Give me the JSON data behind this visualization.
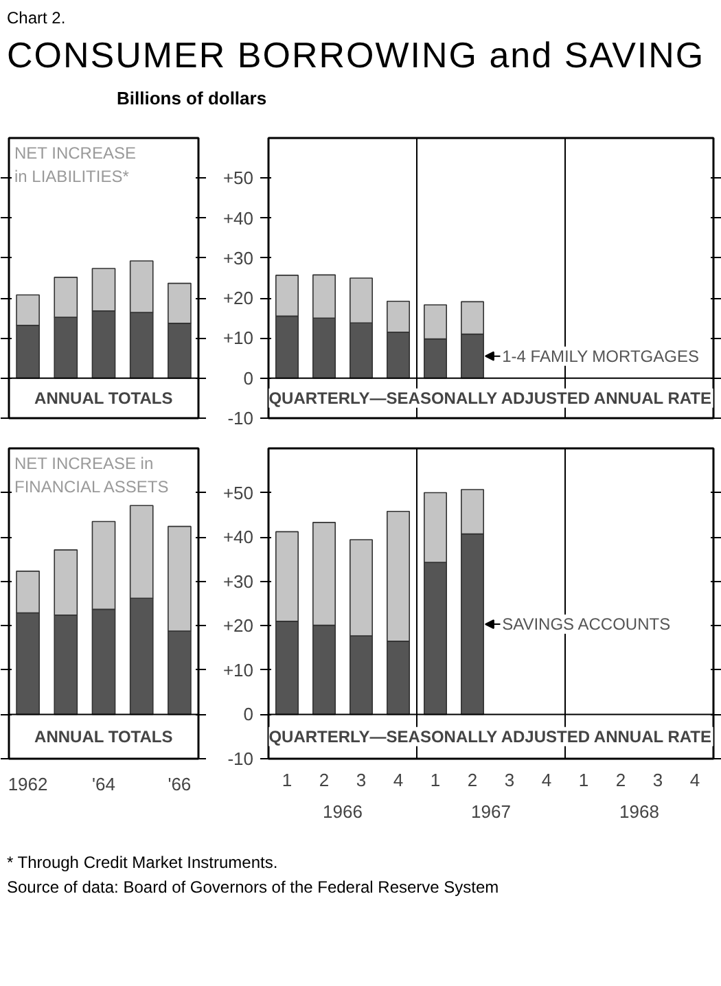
{
  "chart_data": [
    {
      "type": "bar",
      "title": "CONSUMER BORROWING and SAVING",
      "subtitle": "Chart 2.",
      "stacked": true,
      "categories": [
        null,
        null,
        null,
        null,
        null
      ],
      "xlabel": "ANNUAL TOTALS",
      "annotations": [
        "NET INCREASE\nin LIABILITIES*"
      ],
      "ylim": [
        -10,
        60
      ],
      "yticks": [
        -10,
        0,
        10,
        20,
        30,
        40,
        50
      ],
      "tick_labels": false,
      "series": [
        {
          "color": "#555555",
          "values": [
            13.2,
            15.2,
            16.8,
            16.4,
            13.7
          ]
        },
        {
          "color": "#c4c4c4",
          "values": [
            7.6,
            10.0,
            10.6,
            12.9,
            10.0
          ]
        }
      ]
    },
    {
      "type": "bar",
      "stacked": true,
      "ylabel": "Billions of dollars",
      "categories": [
        null,
        null,
        null,
        null,
        null,
        null,
        null,
        null,
        null,
        null,
        null,
        null
      ],
      "xlabel": "QUARTERLY—SEASONALLY ADJUSTED ANNUAL RATE",
      "ylim": [
        -10,
        60
      ],
      "yticks": [
        -10,
        0,
        {
          "value": 10,
          "label": "+10"
        },
        {
          "value": 20,
          "label": "+20"
        },
        {
          "value": 30,
          "label": "+30"
        },
        {
          "value": 40,
          "label": "+40"
        },
        {
          "value": 50,
          "label": "+50"
        }
      ],
      "tick_labels": "y",
      "series": [
        {
          "name": "1-4 FAMILY MORTGAGES",
          "color": "#555555",
          "values": [
            15.5,
            15.0,
            13.8,
            11.5,
            9.8,
            11.0,
            null,
            null,
            null,
            null,
            null,
            null
          ]
        },
        {
          "color": "#c4c4c4",
          "values": [
            10.2,
            10.8,
            11.2,
            7.7,
            8.5,
            8.1,
            null,
            null,
            null,
            null,
            null,
            null
          ]
        }
      ]
    },
    {
      "type": "bar",
      "stacked": true,
      "categories": [
        "1962",
        null,
        "'64",
        null,
        "'66"
      ],
      "xlabel": "ANNUAL TOTALS",
      "annotations": [
        "NET INCREASE in\nFINANCIAL ASSETS",
        "* Through Credit Market Instruments.",
        "Source of data:  Board of Governors of the Federal Reserve System"
      ],
      "ylim": [
        -10,
        60
      ],
      "yticks": [
        -10,
        0,
        10,
        20,
        30,
        40,
        50
      ],
      "tick_labels": "x",
      "series": [
        {
          "color": "#555555",
          "values": [
            22.9,
            22.4,
            23.7,
            26.2,
            18.8
          ]
        },
        {
          "color": "#c4c4c4",
          "values": [
            9.4,
            14.7,
            19.8,
            20.9,
            23.6
          ]
        }
      ]
    },
    {
      "type": "bar",
      "stacked": true,
      "categories": [
        "1",
        "2",
        "3",
        "4",
        "1",
        "2",
        "3",
        "4",
        "1",
        "2",
        "3",
        "4"
      ],
      "xlabel": "QUARTERLY—SEASONALLY ADJUSTED ANNUAL RATE",
      "ylim": [
        -10,
        60
      ],
      "yticks": [
        -10,
        0,
        {
          "value": 10,
          "label": "+10"
        },
        {
          "value": 20,
          "label": "+20"
        },
        {
          "value": 30,
          "label": "+30"
        },
        {
          "value": 40,
          "label": "+40"
        },
        {
          "value": 50,
          "label": "+50"
        }
      ],
      "annotations": [
        "1966",
        "1967",
        "1968"
      ],
      "series": [
        {
          "name": "SAVINGS ACCOUNTS",
          "color": "#555555",
          "values": [
            21.0,
            20.1,
            17.7,
            16.5,
            34.3,
            40.7,
            null,
            null,
            null,
            null,
            null,
            null
          ]
        },
        {
          "color": "#c4c4c4",
          "values": [
            20.2,
            23.2,
            21.7,
            29.3,
            15.7,
            10.0,
            null,
            null,
            null,
            null,
            null,
            null
          ]
        }
      ]
    }
  ]
}
